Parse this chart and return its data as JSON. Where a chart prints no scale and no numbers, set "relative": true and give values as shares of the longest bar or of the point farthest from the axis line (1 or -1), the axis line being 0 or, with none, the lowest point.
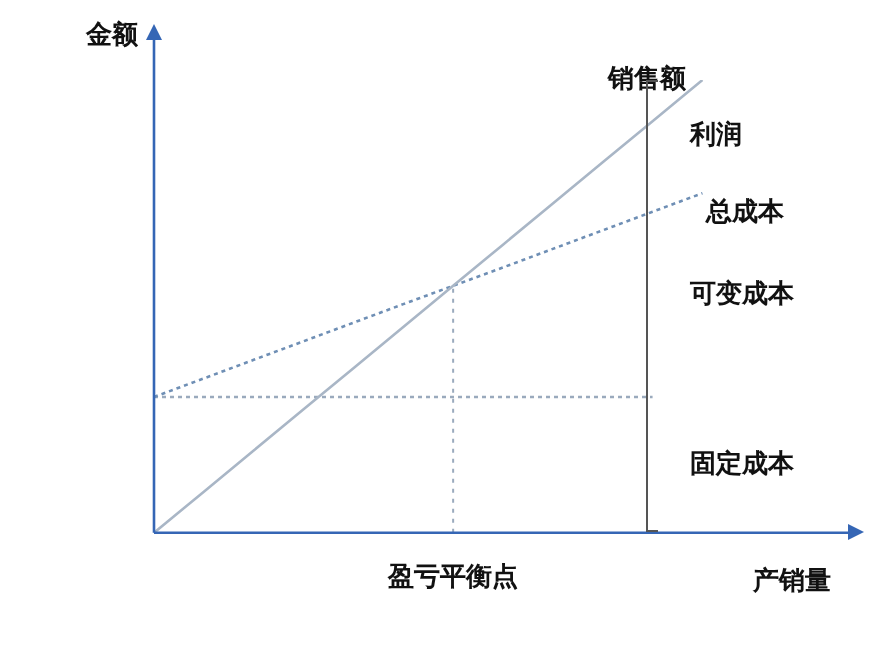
{
  "chart_data": {
    "type": "line",
    "relative": true,
    "xlabel": "产销量",
    "ylabel": "金额",
    "categories": [
      null,
      null,
      null,
      null,
      null,
      null,
      null,
      null,
      null,
      null,
      null,
      null,
      null,
      null,
      null
    ],
    "series": [
      {
        "name": "销售额",
        "color": "#a9b6c6",
        "line_style": "solid",
        "values": [
          0,
          0.0909,
          0.1818,
          0.2727,
          0.3636,
          0.4545,
          0.5455,
          0.6364,
          0.7273,
          0.8182,
          0.9091,
          1,
          null,
          null,
          null
        ]
      },
      {
        "name": "总成本",
        "color": "#6f8fb5",
        "line_style": "dotted",
        "values": [
          0.3,
          0.341,
          0.382,
          0.423,
          0.464,
          0.505,
          0.5455,
          0.586,
          0.627,
          0.668,
          0.709,
          0.75,
          null,
          null,
          null
        ]
      },
      {
        "color": "#9aaabd",
        "line_style": "dotted",
        "values": [
          0.3,
          0.3,
          0.3,
          0.3,
          0.3,
          0.3,
          0.3,
          0.3,
          0.3,
          0.3,
          0.3,
          null,
          null,
          null,
          null
        ]
      }
    ],
    "annotations": [
      "盈亏平衡点",
      "利润",
      "可变成本",
      "固定成本"
    ],
    "grid": false,
    "legend": false,
    "marker": "none"
  }
}
